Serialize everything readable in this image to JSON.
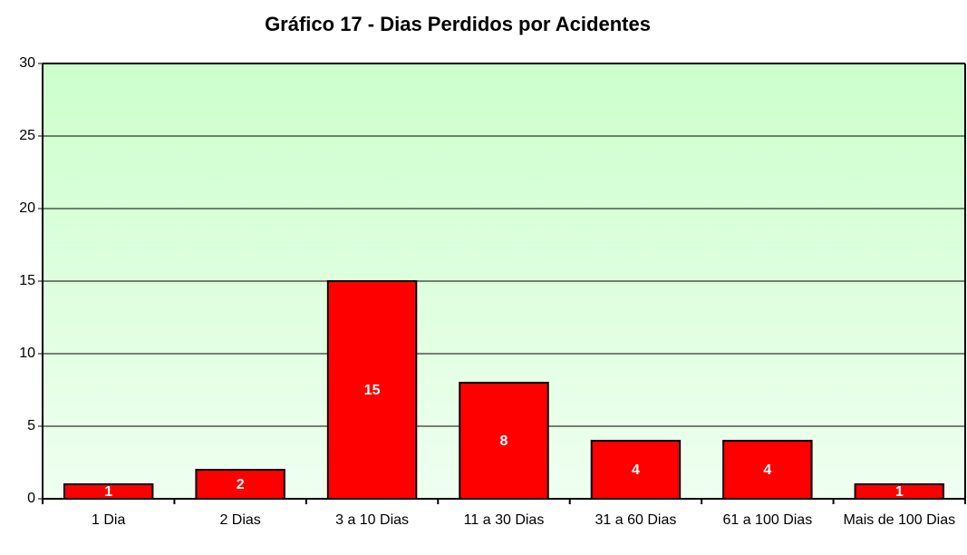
{
  "chart_data": {
    "type": "bar",
    "title": "Gráfico 17 - Dias Perdidos por Acidentes",
    "categories": [
      "1 Dia",
      "2 Dias",
      "3 a 10 Dias",
      "11 a 30 Dias",
      "31 a 60 Dias",
      "61 a 100 Dias",
      "Mais de 100 Dias"
    ],
    "values": [
      1,
      2,
      15,
      8,
      4,
      4,
      1
    ],
    "color": "#ff0000",
    "ylim": [
      0,
      30
    ],
    "yticks": [
      0,
      5,
      10,
      15,
      20,
      25,
      30
    ],
    "grid": true
  }
}
